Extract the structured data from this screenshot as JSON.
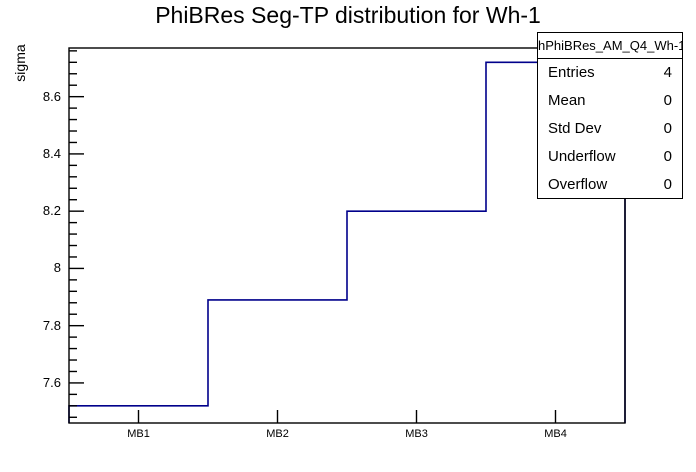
{
  "title": "PhiBRes Seg-TP distribution for Wh-1",
  "chart_data": {
    "type": "bar",
    "style": "step-histogram-outline",
    "title": "PhiBRes Seg-TP distribution for Wh-1",
    "categories": [
      "MB1",
      "MB2",
      "MB3",
      "MB4"
    ],
    "values": [
      7.52,
      7.89,
      8.2,
      8.72
    ],
    "xlabel": "",
    "ylabel": "sigma",
    "ylim": [
      7.46,
      8.77
    ],
    "yticks": [
      7.6,
      7.8,
      8.0,
      8.2,
      8.4,
      8.6
    ],
    "ytick_labels": [
      "7.6",
      "7.8",
      "8",
      "8.2",
      "8.4",
      "8.6"
    ],
    "minor_tick_step": 0.04,
    "grid": false,
    "legend_position": "none",
    "line_color": "#00008B",
    "frame_color": "#000000"
  },
  "stats_box": {
    "header": "hPhiBRes_AM_Q4_Wh-1",
    "rows": [
      {
        "label": "Entries",
        "value": "4"
      },
      {
        "label": "Mean",
        "value": "0"
      },
      {
        "label": "Std Dev",
        "value": "0"
      },
      {
        "label": "Underflow",
        "value": "0"
      },
      {
        "label": "Overflow",
        "value": "0"
      }
    ]
  }
}
